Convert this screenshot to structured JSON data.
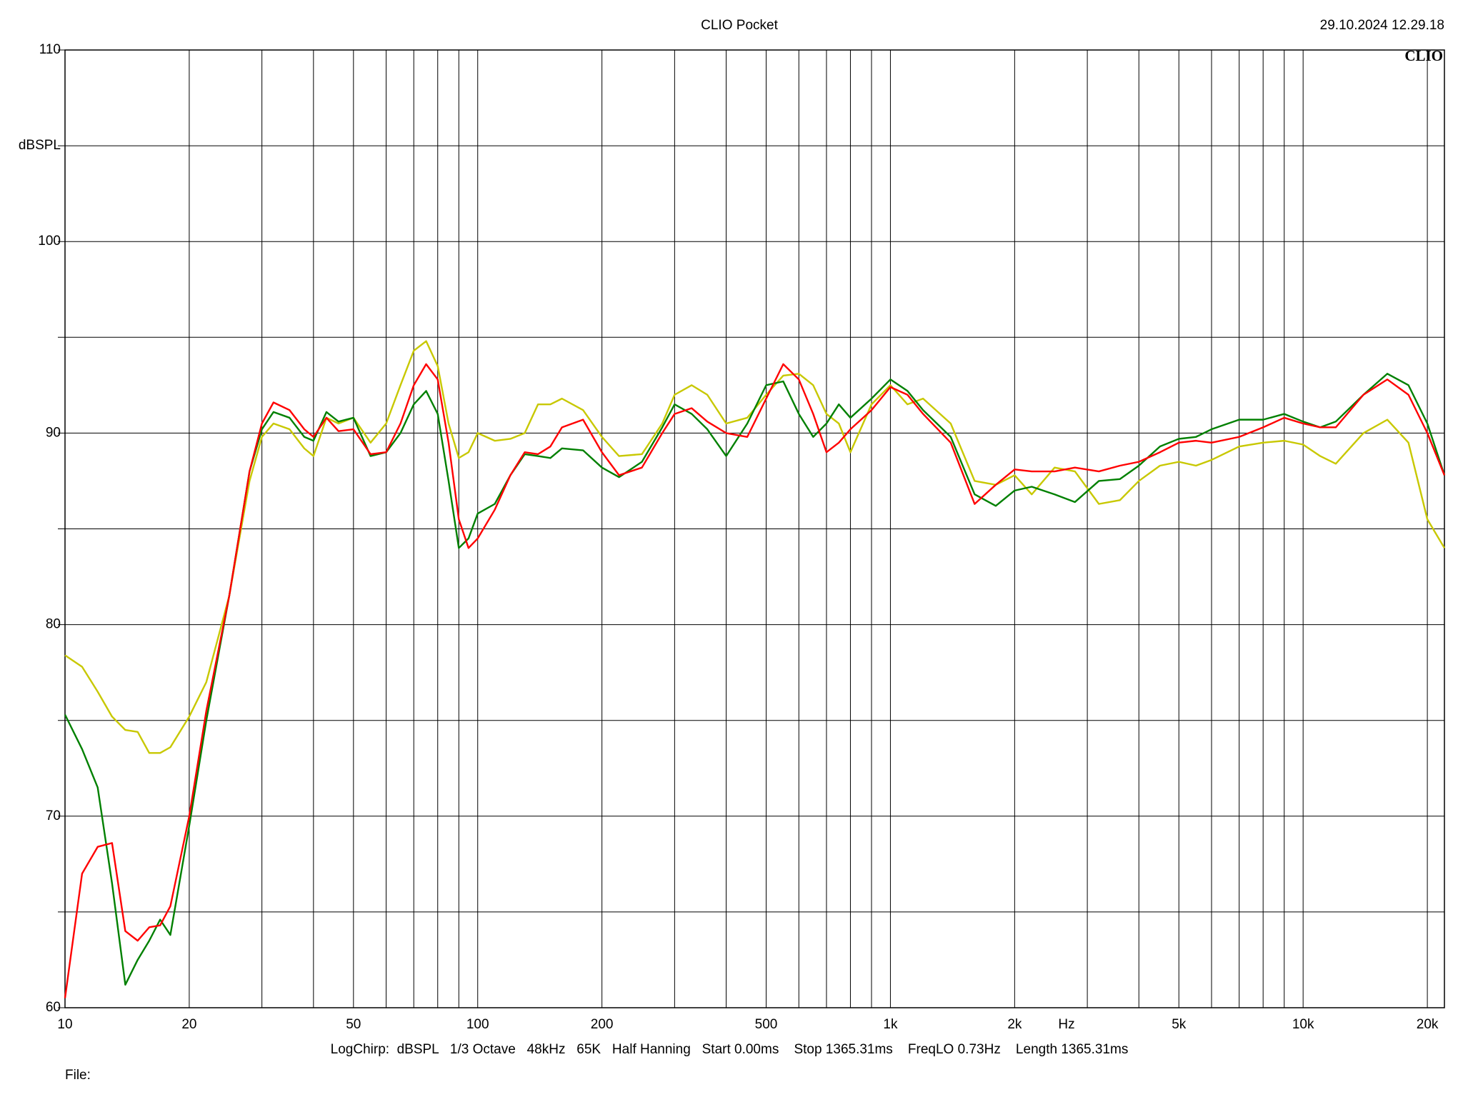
{
  "chart_data": {
    "type": "line",
    "title": "CLIO Pocket",
    "timestamp": "29.10.2024 12.29.18",
    "logo": "CLIO",
    "y_label": "dBSPL",
    "x_label": "Hz",
    "footer": "LogChirp:  dBSPL   1/3 Octave   48kHz   65K   Half Hanning   Start 0.00ms    Stop 1365.31ms    FreqLO 0.73Hz    Length 1365.31ms",
    "file_label": "File:",
    "xscale": "log",
    "grid": true,
    "xlim": [
      10,
      22000
    ],
    "ylim": [
      60,
      110
    ],
    "xticks": [
      10,
      20,
      50,
      100,
      200,
      500,
      {
        "value": 1000,
        "label": "1k"
      },
      {
        "value": 2000,
        "label": "2k"
      },
      {
        "value": 5000,
        "label": "5k"
      },
      {
        "value": 10000,
        "label": "10k"
      },
      {
        "value": 20000,
        "label": "20k"
      }
    ],
    "xminor": [
      30,
      40,
      60,
      70,
      80,
      90,
      300,
      400,
      600,
      700,
      800,
      900,
      3000,
      4000,
      6000,
      7000,
      8000,
      9000
    ],
    "yticks": [
      60,
      70,
      80,
      90,
      100,
      110
    ],
    "yminor": [
      65,
      75,
      85,
      95,
      105
    ],
    "x": [
      10,
      11,
      12,
      13,
      14,
      15,
      16,
      17,
      18,
      20,
      22,
      25,
      28,
      30,
      32,
      35,
      38,
      40,
      43,
      46,
      50,
      55,
      60,
      65,
      70,
      75,
      80,
      85,
      90,
      95,
      100,
      110,
      120,
      130,
      140,
      150,
      160,
      180,
      200,
      220,
      250,
      280,
      300,
      330,
      360,
      400,
      450,
      500,
      550,
      600,
      650,
      700,
      750,
      800,
      900,
      1000,
      1100,
      1200,
      1400,
      1600,
      1800,
      2000,
      2200,
      2500,
      2800,
      3200,
      3600,
      4000,
      4500,
      5000,
      5500,
      6000,
      7000,
      8000,
      9000,
      10000,
      11000,
      12000,
      14000,
      16000,
      18000,
      20000,
      22000
    ],
    "series": [
      {
        "color": "#c8c800",
        "values": [
          78.4,
          77.8,
          76.5,
          75.2,
          74.5,
          74.4,
          73.3,
          73.3,
          73.6,
          75.2,
          77.0,
          81.5,
          87.5,
          89.8,
          90.5,
          90.2,
          89.2,
          88.8,
          90.8,
          90.5,
          90.8,
          89.5,
          90.5,
          92.5,
          94.3,
          94.8,
          93.5,
          90.5,
          88.7,
          89.0,
          90.0,
          89.6,
          89.7,
          90.0,
          91.5,
          91.5,
          91.8,
          91.2,
          89.8,
          88.8,
          88.9,
          90.5,
          92.0,
          92.5,
          92.0,
          90.5,
          90.8,
          92.0,
          93.0,
          93.1,
          92.5,
          91.0,
          90.5,
          89.0,
          91.5,
          92.5,
          91.5,
          91.8,
          90.5,
          87.5,
          87.3,
          87.8,
          86.8,
          88.2,
          88.0,
          86.3,
          86.5,
          87.5,
          88.3,
          88.5,
          88.3,
          88.6,
          89.3,
          89.5,
          89.6,
          89.4,
          88.8,
          88.4,
          90.0,
          90.7,
          89.5,
          85.5,
          84.0
        ]
      },
      {
        "color": "#008000",
        "values": [
          75.3,
          73.5,
          71.5,
          66.5,
          61.2,
          62.5,
          63.5,
          64.6,
          63.8,
          69.5,
          75.0,
          81.5,
          88.0,
          90.2,
          91.1,
          90.8,
          89.8,
          89.6,
          91.1,
          90.6,
          90.8,
          88.8,
          89.0,
          90.0,
          91.5,
          92.2,
          91.0,
          87.5,
          84.0,
          84.5,
          85.8,
          86.3,
          87.8,
          88.9,
          88.8,
          88.7,
          89.2,
          89.1,
          88.2,
          87.7,
          88.5,
          90.3,
          91.5,
          91.0,
          90.2,
          88.8,
          90.5,
          92.5,
          92.7,
          91.0,
          89.8,
          90.5,
          91.5,
          90.8,
          91.8,
          92.8,
          92.2,
          91.2,
          89.8,
          86.8,
          86.2,
          87.0,
          87.2,
          86.8,
          86.4,
          87.5,
          87.6,
          88.3,
          89.3,
          89.7,
          89.8,
          90.2,
          90.7,
          90.7,
          91.0,
          90.6,
          90.3,
          90.6,
          92.0,
          93.1,
          92.5,
          90.5,
          87.8
        ]
      },
      {
        "color": "#ff0000",
        "values": [
          60.5,
          67.0,
          68.4,
          68.6,
          64.0,
          63.5,
          64.2,
          64.3,
          65.3,
          70.0,
          75.5,
          81.5,
          88.0,
          90.5,
          91.6,
          91.2,
          90.2,
          89.8,
          90.8,
          90.1,
          90.2,
          88.9,
          89.0,
          90.5,
          92.5,
          93.6,
          92.8,
          89.5,
          85.5,
          84.0,
          84.5,
          86.0,
          87.8,
          89.0,
          88.9,
          89.3,
          90.3,
          90.7,
          89.0,
          87.8,
          88.2,
          90.0,
          91.0,
          91.3,
          90.6,
          90.0,
          89.8,
          91.8,
          93.6,
          92.8,
          91.0,
          89.0,
          89.5,
          90.2,
          91.2,
          92.4,
          92.0,
          91.0,
          89.5,
          86.3,
          87.3,
          88.1,
          88.0,
          88.0,
          88.2,
          88.0,
          88.3,
          88.5,
          89.0,
          89.5,
          89.6,
          89.5,
          89.8,
          90.3,
          90.8,
          90.5,
          90.3,
          90.3,
          92.0,
          92.8,
          92.0,
          90.0,
          87.8
        ]
      }
    ]
  }
}
